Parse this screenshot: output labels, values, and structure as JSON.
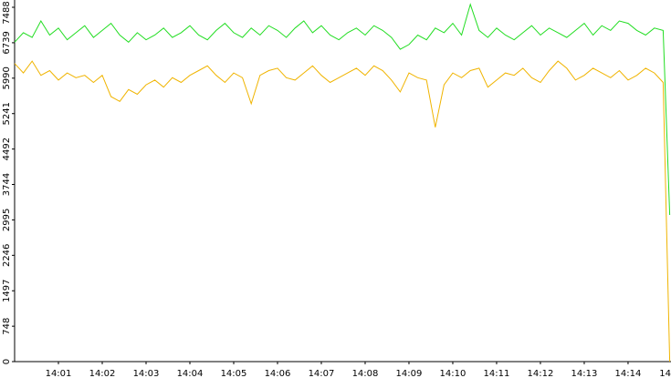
{
  "chart_data": {
    "type": "line",
    "x": [
      0,
      0.2,
      0.4,
      0.6,
      0.8,
      1,
      1.2,
      1.4,
      1.6,
      1.8,
      2,
      2.2,
      2.4,
      2.6,
      2.8,
      3,
      3.2,
      3.4,
      3.6,
      3.8,
      4,
      4.2,
      4.4,
      4.6,
      4.8,
      5,
      5.2,
      5.4,
      5.6,
      5.8,
      6,
      6.2,
      6.4,
      6.6,
      6.8,
      7,
      7.2,
      7.4,
      7.6,
      7.8,
      8,
      8.2,
      8.4,
      8.6,
      8.8,
      9,
      9.2,
      9.4,
      9.6,
      9.8,
      10,
      10.2,
      10.4,
      10.6,
      10.8,
      11,
      11.2,
      11.4,
      11.6,
      11.8,
      12,
      12.2,
      12.4,
      12.6,
      12.8,
      13,
      13.2,
      13.4,
      13.6,
      13.8,
      14,
      14.2,
      14.4,
      14.6,
      14.8,
      14.95
    ],
    "series": [
      {
        "color": "#22dd22",
        "values": [
          6750,
          6950,
          6850,
          7200,
          6900,
          7050,
          6800,
          6950,
          7100,
          6850,
          7000,
          7150,
          6900,
          6750,
          6950,
          6800,
          6900,
          7050,
          6850,
          6950,
          7100,
          6900,
          6800,
          7000,
          7150,
          6950,
          6850,
          7050,
          6900,
          7100,
          7000,
          6850,
          7050,
          7200,
          6950,
          7100,
          6900,
          6800,
          6950,
          7050,
          6900,
          7100,
          7000,
          6850,
          6600,
          6700,
          6900,
          6800,
          7050,
          6950,
          7150,
          6900,
          7550,
          7000,
          6850,
          7050,
          6900,
          6800,
          6950,
          7100,
          6900,
          7050,
          6950,
          6850,
          7000,
          7150,
          6900,
          7100,
          7000,
          7200,
          7150,
          7000,
          6900,
          7050,
          7000,
          3100
        ]
      },
      {
        "color": "#f0b400",
        "values": [
          6300,
          6100,
          6350,
          6050,
          6150,
          5950,
          6100,
          6000,
          6050,
          5900,
          6050,
          5600,
          5500,
          5750,
          5650,
          5850,
          5950,
          5800,
          6000,
          5900,
          6050,
          6150,
          6250,
          6050,
          5900,
          6100,
          6000,
          5450,
          6050,
          6150,
          6200,
          6000,
          5950,
          6100,
          6250,
          6050,
          5900,
          6000,
          6100,
          6200,
          6050,
          6250,
          6150,
          5950,
          5700,
          6100,
          6000,
          5950,
          4950,
          5850,
          6100,
          6000,
          6150,
          6200,
          5800,
          5950,
          6100,
          6050,
          6200,
          6000,
          5900,
          6150,
          6350,
          6200,
          5950,
          6050,
          6200,
          6100,
          6000,
          6150,
          5950,
          6050,
          6200,
          6100,
          5900,
          0
        ]
      }
    ],
    "xlim": [
      0,
      14.98
    ],
    "ylim": [
      0,
      7642
    ],
    "yticks": [
      0,
      748,
      1497,
      2246,
      2995,
      3744,
      4492,
      5241,
      5990,
      6739,
      7488
    ],
    "xticks": [
      {
        "value": 1,
        "label": "14:01"
      },
      {
        "value": 2,
        "label": "14:02"
      },
      {
        "value": 3,
        "label": "14:03"
      },
      {
        "value": 4,
        "label": "14:04"
      },
      {
        "value": 5,
        "label": "14:05"
      },
      {
        "value": 6,
        "label": "14:06"
      },
      {
        "value": 7,
        "label": "14:07"
      },
      {
        "value": 8,
        "label": "14:08"
      },
      {
        "value": 9,
        "label": "14:09"
      },
      {
        "value": 10,
        "label": "14:10"
      },
      {
        "value": 11,
        "label": "14:11"
      },
      {
        "value": 12,
        "label": "14:12"
      },
      {
        "value": 13,
        "label": "14:13"
      },
      {
        "value": 14,
        "label": "14:14"
      },
      {
        "value": 15,
        "label": "14"
      }
    ]
  }
}
